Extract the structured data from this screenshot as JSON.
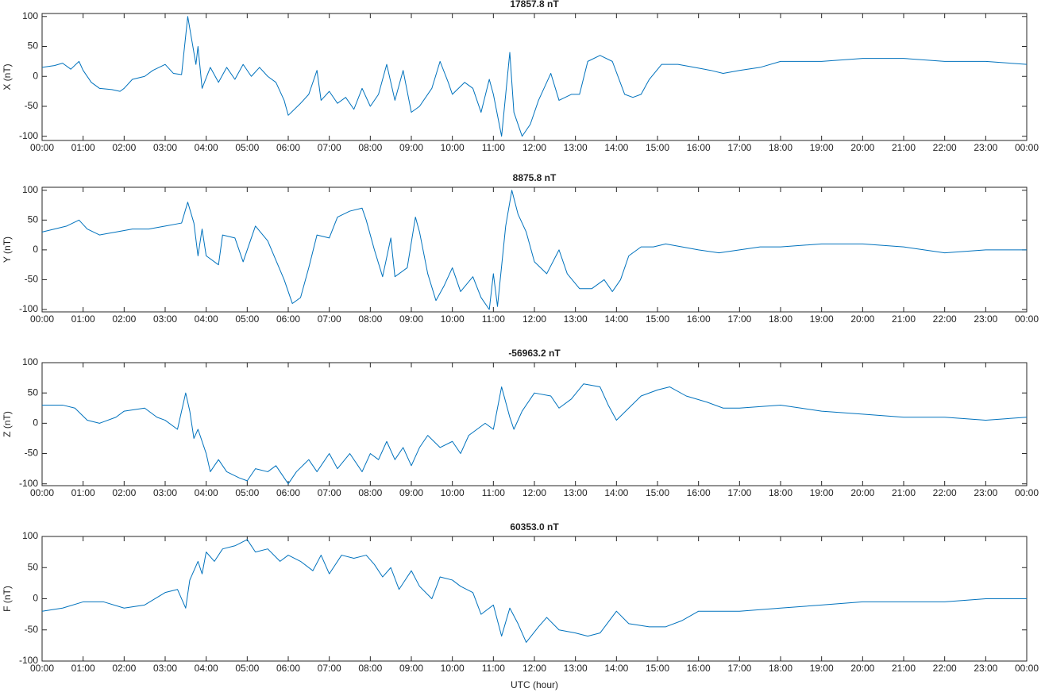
{
  "chart_data": [
    {
      "type": "line",
      "title": "17857.8 nT",
      "y_label": "X (nT)",
      "color": "#0072bd",
      "ylim": [
        -107,
        105
      ],
      "yticks": [
        -100,
        -50,
        0,
        50,
        100
      ],
      "xlim": [
        0,
        24
      ],
      "xticks": [
        {
          "value": 0,
          "label": "00:00"
        },
        {
          "value": 1,
          "label": "01:00"
        },
        {
          "value": 2,
          "label": "02:00"
        },
        {
          "value": 3,
          "label": "03:00"
        },
        {
          "value": 4,
          "label": "04:00"
        },
        {
          "value": 5,
          "label": "05:00"
        },
        {
          "value": 6,
          "label": "06:00"
        },
        {
          "value": 7,
          "label": "07:00"
        },
        {
          "value": 8,
          "label": "08:00"
        },
        {
          "value": 9,
          "label": "09:00"
        },
        {
          "value": 10,
          "label": "10:00"
        },
        {
          "value": 11,
          "label": "11:00"
        },
        {
          "value": 12,
          "label": "12:00"
        },
        {
          "value": 13,
          "label": "13:00"
        },
        {
          "value": 14,
          "label": "14:00"
        },
        {
          "value": 15,
          "label": "15:00"
        },
        {
          "value": 16,
          "label": "16:00"
        },
        {
          "value": 17,
          "label": "17:00"
        },
        {
          "value": 18,
          "label": "18:00"
        },
        {
          "value": 19,
          "label": "19:00"
        },
        {
          "value": 20,
          "label": "20:00"
        },
        {
          "value": 21,
          "label": "21:00"
        },
        {
          "value": 22,
          "label": "22:00"
        },
        {
          "value": 23,
          "label": "23:00"
        },
        {
          "value": 24,
          "label": "00:00"
        }
      ],
      "x": [
        0,
        0.3,
        0.5,
        0.7,
        0.9,
        1.0,
        1.2,
        1.4,
        1.7,
        1.9,
        2.0,
        2.2,
        2.5,
        2.7,
        3.0,
        3.2,
        3.4,
        3.55,
        3.65,
        3.75,
        3.8,
        3.9,
        4.1,
        4.3,
        4.5,
        4.7,
        4.9,
        5.1,
        5.3,
        5.5,
        5.7,
        5.9,
        6.0,
        6.3,
        6.5,
        6.7,
        6.8,
        7.0,
        7.2,
        7.4,
        7.6,
        7.8,
        8.0,
        8.2,
        8.4,
        8.6,
        8.8,
        9.0,
        9.2,
        9.5,
        9.7,
        9.9,
        10.0,
        10.3,
        10.5,
        10.7,
        10.9,
        11.0,
        11.2,
        11.4,
        11.5,
        11.7,
        11.9,
        12.1,
        12.4,
        12.6,
        12.9,
        13.1,
        13.3,
        13.6,
        13.9,
        14.2,
        14.4,
        14.6,
        14.8,
        15.1,
        15.5,
        15.9,
        16.3,
        16.6,
        17.0,
        17.5,
        18.0,
        19.0,
        20.0,
        21.0,
        22.0,
        23.0,
        24.0
      ],
      "values": [
        15,
        18,
        22,
        12,
        25,
        10,
        -10,
        -20,
        -22,
        -25,
        -20,
        -5,
        0,
        10,
        20,
        5,
        3,
        100,
        60,
        20,
        50,
        -20,
        15,
        -10,
        15,
        -5,
        20,
        0,
        15,
        0,
        -10,
        -40,
        -65,
        -45,
        -30,
        10,
        -40,
        -25,
        -45,
        -35,
        -55,
        -20,
        -50,
        -30,
        20,
        -40,
        10,
        -60,
        -50,
        -20,
        25,
        -10,
        -30,
        -10,
        -20,
        -60,
        -5,
        -30,
        -100,
        40,
        -60,
        -100,
        -80,
        -40,
        5,
        -40,
        -30,
        -30,
        25,
        35,
        25,
        -30,
        -35,
        -30,
        -5,
        20,
        20,
        15,
        10,
        5,
        10,
        15,
        25,
        25,
        30,
        30,
        25,
        25,
        20
      ]
    },
    {
      "type": "line",
      "title": "8875.8 nT",
      "y_label": "Y (nT)",
      "color": "#0072bd",
      "ylim": [
        -104,
        105
      ],
      "yticks": [
        -100,
        -50,
        0,
        50,
        100
      ],
      "xlim": [
        0,
        24
      ],
      "xticks": [
        {
          "value": 0,
          "label": "00:00"
        },
        {
          "value": 1,
          "label": "01:00"
        },
        {
          "value": 2,
          "label": "02:00"
        },
        {
          "value": 3,
          "label": "03:00"
        },
        {
          "value": 4,
          "label": "04:00"
        },
        {
          "value": 5,
          "label": "05:00"
        },
        {
          "value": 6,
          "label": "06:00"
        },
        {
          "value": 7,
          "label": "07:00"
        },
        {
          "value": 8,
          "label": "08:00"
        },
        {
          "value": 9,
          "label": "09:00"
        },
        {
          "value": 10,
          "label": "10:00"
        },
        {
          "value": 11,
          "label": "11:00"
        },
        {
          "value": 12,
          "label": "12:00"
        },
        {
          "value": 13,
          "label": "13:00"
        },
        {
          "value": 14,
          "label": "14:00"
        },
        {
          "value": 15,
          "label": "15:00"
        },
        {
          "value": 16,
          "label": "16:00"
        },
        {
          "value": 17,
          "label": "17:00"
        },
        {
          "value": 18,
          "label": "18:00"
        },
        {
          "value": 19,
          "label": "19:00"
        },
        {
          "value": 20,
          "label": "20:00"
        },
        {
          "value": 21,
          "label": "21:00"
        },
        {
          "value": 22,
          "label": "22:00"
        },
        {
          "value": 23,
          "label": "23:00"
        },
        {
          "value": 24,
          "label": "00:00"
        }
      ],
      "x": [
        0,
        0.3,
        0.6,
        0.9,
        1.1,
        1.4,
        1.8,
        2.2,
        2.6,
        3.0,
        3.4,
        3.55,
        3.7,
        3.8,
        3.9,
        4.0,
        4.3,
        4.4,
        4.7,
        4.9,
        5.2,
        5.5,
        5.9,
        6.0,
        6.1,
        6.3,
        6.5,
        6.7,
        7.0,
        7.2,
        7.5,
        7.8,
        7.9,
        8.1,
        8.3,
        8.5,
        8.6,
        8.9,
        9.1,
        9.2,
        9.4,
        9.6,
        9.8,
        10.0,
        10.2,
        10.5,
        10.7,
        10.9,
        11.0,
        11.1,
        11.3,
        11.45,
        11.6,
        11.8,
        12.0,
        12.3,
        12.6,
        12.8,
        13.1,
        13.4,
        13.7,
        13.9,
        14.1,
        14.3,
        14.6,
        14.9,
        15.2,
        15.6,
        16.0,
        16.5,
        17,
        17.5,
        18,
        19,
        20,
        21,
        22,
        23,
        24
      ],
      "values": [
        30,
        35,
        40,
        50,
        35,
        25,
        30,
        35,
        35,
        40,
        45,
        80,
        45,
        -10,
        35,
        -10,
        -25,
        25,
        20,
        -20,
        40,
        15,
        -50,
        -70,
        -90,
        -80,
        -30,
        25,
        20,
        55,
        65,
        70,
        50,
        0,
        -45,
        20,
        -45,
        -30,
        55,
        30,
        -40,
        -85,
        -60,
        -30,
        -70,
        -45,
        -80,
        -100,
        -40,
        -95,
        40,
        100,
        60,
        30,
        -20,
        -40,
        0,
        -40,
        -65,
        -65,
        -50,
        -70,
        -50,
        -10,
        5,
        5,
        10,
        5,
        0,
        -5,
        0,
        5,
        5,
        10,
        10,
        5,
        -5,
        0,
        0
      ]
    },
    {
      "type": "line",
      "title": "-56963.2 nT",
      "y_label": "Z (nT)",
      "color": "#0072bd",
      "ylim": [
        -103,
        100
      ],
      "yticks": [
        -100,
        -50,
        0,
        50,
        100
      ],
      "xlim": [
        0,
        24
      ],
      "xticks": [
        {
          "value": 0,
          "label": "00:00"
        },
        {
          "value": 1,
          "label": "01:00"
        },
        {
          "value": 2,
          "label": "02:00"
        },
        {
          "value": 3,
          "label": "03:00"
        },
        {
          "value": 4,
          "label": "04:00"
        },
        {
          "value": 5,
          "label": "05:00"
        },
        {
          "value": 6,
          "label": "06:00"
        },
        {
          "value": 7,
          "label": "07:00"
        },
        {
          "value": 8,
          "label": "08:00"
        },
        {
          "value": 9,
          "label": "09:00"
        },
        {
          "value": 10,
          "label": "10:00"
        },
        {
          "value": 11,
          "label": "11:00"
        },
        {
          "value": 12,
          "label": "12:00"
        },
        {
          "value": 13,
          "label": "13:00"
        },
        {
          "value": 14,
          "label": "14:00"
        },
        {
          "value": 15,
          "label": "15:00"
        },
        {
          "value": 16,
          "label": "16:00"
        },
        {
          "value": 17,
          "label": "17:00"
        },
        {
          "value": 18,
          "label": "18:00"
        },
        {
          "value": 19,
          "label": "19:00"
        },
        {
          "value": 20,
          "label": "20:00"
        },
        {
          "value": 21,
          "label": "21:00"
        },
        {
          "value": 22,
          "label": "22:00"
        },
        {
          "value": 23,
          "label": "23:00"
        },
        {
          "value": 24,
          "label": "00:00"
        }
      ],
      "x": [
        0,
        0.5,
        0.8,
        1.1,
        1.4,
        1.8,
        2.0,
        2.5,
        2.8,
        3.0,
        3.3,
        3.5,
        3.6,
        3.7,
        3.8,
        4.0,
        4.1,
        4.3,
        4.5,
        4.8,
        5.0,
        5.2,
        5.5,
        5.7,
        6.0,
        6.2,
        6.5,
        6.7,
        7.0,
        7.2,
        7.5,
        7.8,
        8.0,
        8.2,
        8.4,
        8.6,
        8.8,
        9.0,
        9.2,
        9.4,
        9.7,
        10.0,
        10.2,
        10.4,
        10.6,
        10.8,
        11.0,
        11.2,
        11.4,
        11.5,
        11.7,
        12.0,
        12.4,
        12.6,
        12.9,
        13.2,
        13.6,
        13.8,
        14.0,
        14.3,
        14.6,
        15.0,
        15.3,
        15.7,
        16.2,
        16.6,
        17,
        18,
        19,
        20,
        21,
        22,
        23,
        24
      ],
      "values": [
        30,
        30,
        25,
        5,
        0,
        10,
        20,
        25,
        10,
        5,
        -10,
        50,
        20,
        -25,
        -10,
        -50,
        -80,
        -60,
        -80,
        -90,
        -95,
        -75,
        -80,
        -70,
        -100,
        -80,
        -60,
        -80,
        -50,
        -75,
        -50,
        -80,
        -50,
        -60,
        -30,
        -60,
        -40,
        -70,
        -40,
        -20,
        -40,
        -30,
        -50,
        -20,
        -10,
        0,
        -10,
        60,
        10,
        -10,
        20,
        50,
        45,
        25,
        40,
        65,
        60,
        30,
        5,
        25,
        45,
        55,
        60,
        45,
        35,
        25,
        25,
        30,
        20,
        15,
        10,
        10,
        5,
        10
      ]
    },
    {
      "type": "line",
      "title": "60353.0 nT",
      "y_label": "F (nT)",
      "x_label": "UTC (hour)",
      "color": "#0072bd",
      "ylim": [
        -100,
        100
      ],
      "yticks": [
        -100,
        -50,
        0,
        50,
        100
      ],
      "xlim": [
        0,
        24
      ],
      "xticks": [
        {
          "value": 0,
          "label": "00:00"
        },
        {
          "value": 1,
          "label": "01:00"
        },
        {
          "value": 2,
          "label": "02:00"
        },
        {
          "value": 3,
          "label": "03:00"
        },
        {
          "value": 4,
          "label": "04:00"
        },
        {
          "value": 5,
          "label": "05:00"
        },
        {
          "value": 6,
          "label": "06:00"
        },
        {
          "value": 7,
          "label": "07:00"
        },
        {
          "value": 8,
          "label": "08:00"
        },
        {
          "value": 9,
          "label": "09:00"
        },
        {
          "value": 10,
          "label": "10:00"
        },
        {
          "value": 11,
          "label": "11:00"
        },
        {
          "value": 12,
          "label": "12:00"
        },
        {
          "value": 13,
          "label": "13:00"
        },
        {
          "value": 14,
          "label": "14:00"
        },
        {
          "value": 15,
          "label": "15:00"
        },
        {
          "value": 16,
          "label": "16:00"
        },
        {
          "value": 17,
          "label": "17:00"
        },
        {
          "value": 18,
          "label": "18:00"
        },
        {
          "value": 19,
          "label": "19:00"
        },
        {
          "value": 20,
          "label": "20:00"
        },
        {
          "value": 21,
          "label": "21:00"
        },
        {
          "value": 22,
          "label": "22:00"
        },
        {
          "value": 23,
          "label": "23:00"
        },
        {
          "value": 24,
          "label": "00:00"
        }
      ],
      "x": [
        0,
        0.5,
        1.0,
        1.5,
        2.0,
        2.5,
        3.0,
        3.3,
        3.5,
        3.6,
        3.8,
        3.9,
        4.0,
        4.2,
        4.4,
        4.7,
        5.0,
        5.2,
        5.5,
        5.8,
        6.0,
        6.3,
        6.6,
        6.8,
        7.0,
        7.3,
        7.6,
        7.9,
        8.1,
        8.3,
        8.5,
        8.7,
        9.0,
        9.2,
        9.5,
        9.7,
        10.0,
        10.2,
        10.5,
        10.7,
        11.0,
        11.2,
        11.4,
        11.6,
        11.8,
        12.1,
        12.3,
        12.6,
        13.0,
        13.3,
        13.6,
        14.0,
        14.3,
        14.8,
        15.2,
        15.6,
        16.0,
        16.5,
        17,
        18,
        19,
        20,
        21,
        22,
        23,
        24
      ],
      "values": [
        -20,
        -15,
        -5,
        -5,
        -15,
        -10,
        10,
        15,
        -15,
        30,
        60,
        40,
        75,
        60,
        80,
        85,
        95,
        75,
        80,
        60,
        70,
        60,
        45,
        70,
        40,
        70,
        65,
        70,
        55,
        35,
        50,
        15,
        45,
        20,
        0,
        35,
        30,
        20,
        10,
        -25,
        -10,
        -60,
        -15,
        -40,
        -70,
        -45,
        -30,
        -50,
        -55,
        -60,
        -55,
        -20,
        -40,
        -45,
        -45,
        -35,
        -20,
        -20,
        -20,
        -15,
        -10,
        -5,
        -5,
        -5,
        0,
        0
      ]
    }
  ]
}
